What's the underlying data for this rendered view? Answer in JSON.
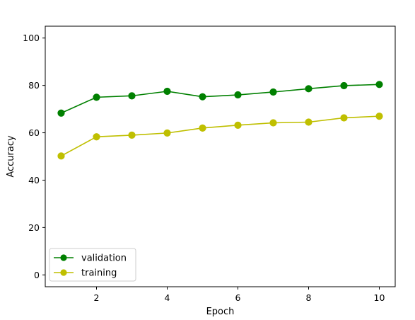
{
  "chart_data": {
    "type": "line",
    "title": "",
    "xlabel": "Epoch",
    "ylabel": "Accuracy",
    "xlim": [
      0.55,
      10.45
    ],
    "ylim": [
      -5,
      105
    ],
    "x": [
      1,
      2,
      3,
      4,
      5,
      6,
      7,
      8,
      9,
      10
    ],
    "xticks": [
      2,
      4,
      6,
      8,
      10
    ],
    "yticks": [
      0,
      20,
      40,
      60,
      80,
      100
    ],
    "grid": false,
    "legend_position": "lower-left",
    "series": [
      {
        "name": "validation",
        "color": "#008000",
        "marker": "circle",
        "values": [
          68.3,
          75.0,
          75.6,
          77.5,
          75.2,
          76.0,
          77.2,
          78.6,
          79.9,
          80.4
        ]
      },
      {
        "name": "training",
        "color": "#bfbf00",
        "marker": "circle",
        "values": [
          50.2,
          58.3,
          59.0,
          59.9,
          62.0,
          63.2,
          64.2,
          64.5,
          66.3,
          67.0
        ]
      }
    ]
  }
}
